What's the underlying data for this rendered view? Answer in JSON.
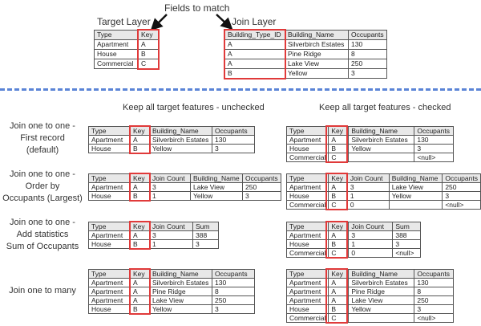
{
  "header": {
    "fields_to_match": "Fields to match",
    "target_layer": "Target Layer",
    "join_layer": "Join Layer"
  },
  "columns": {
    "unchecked": "Keep all target features - unchecked",
    "checked": "Keep all target features - checked"
  },
  "row_labels": [
    [
      "Join one to one -",
      "First record",
      "(default)"
    ],
    [
      "Join one to one -",
      "Order by",
      "Occupants (Largest)"
    ],
    [
      "Join one to one -",
      "Add statistics",
      "Sum of Occupants"
    ],
    [
      "Join one to many"
    ]
  ],
  "colors": {
    "key_highlight": "#e03a3a",
    "divider": "#5b84d6"
  },
  "tables": {
    "target": {
      "columns": [
        "Type",
        "Key"
      ],
      "rows": [
        [
          "Apartment",
          "A"
        ],
        [
          "House",
          "B"
        ],
        [
          "Commercial",
          "C"
        ]
      ]
    },
    "join": {
      "columns": [
        "Building_Type_ID",
        "Building_Name",
        "Occupants"
      ],
      "rows": [
        [
          "A",
          "Silverbirch Estates",
          "130"
        ],
        [
          "A",
          "Pine Ridge",
          "8"
        ],
        [
          "A",
          "Lake View",
          "250"
        ],
        [
          "B",
          "Yellow",
          "3"
        ]
      ]
    },
    "first_unchecked": {
      "columns": [
        "Type",
        "Key",
        "Building_Name",
        "Occupants"
      ],
      "rows": [
        [
          "Apartment",
          "A",
          "Silverbirch Estates",
          "130"
        ],
        [
          "House",
          "B",
          "Yellow",
          "3"
        ]
      ]
    },
    "first_checked": {
      "columns": [
        "Type",
        "Key",
        "Building_Name",
        "Occupants"
      ],
      "rows": [
        [
          "Apartment",
          "A",
          "Silverbirch Estates",
          "130"
        ],
        [
          "House",
          "B",
          "Yellow",
          "3"
        ],
        [
          "Commercial",
          "C",
          "",
          "<null>"
        ]
      ]
    },
    "order_unchecked": {
      "columns": [
        "Type",
        "Key",
        "Join Count",
        "Building_Name",
        "Occupants"
      ],
      "rows": [
        [
          "Apartment",
          "A",
          "3",
          "Lake View",
          "250"
        ],
        [
          "House",
          "B",
          "1",
          "Yellow",
          "3"
        ]
      ]
    },
    "order_checked": {
      "columns": [
        "Type",
        "Key",
        "Join Count",
        "Building_Name",
        "Occupants"
      ],
      "rows": [
        [
          "Apartment",
          "A",
          "3",
          "Lake View",
          "250"
        ],
        [
          "House",
          "B",
          "1",
          "Yellow",
          "3"
        ],
        [
          "Commercial",
          "C",
          "0",
          "",
          "<null>"
        ]
      ]
    },
    "stats_unchecked": {
      "columns": [
        "Type",
        "Key",
        "Join Count",
        "Sum"
      ],
      "rows": [
        [
          "Apartment",
          "A",
          "3",
          "388"
        ],
        [
          "House",
          "B",
          "1",
          "3"
        ]
      ]
    },
    "stats_checked": {
      "columns": [
        "Type",
        "Key",
        "Join Count",
        "Sum"
      ],
      "rows": [
        [
          "Apartment",
          "A",
          "3",
          "388"
        ],
        [
          "House",
          "B",
          "1",
          "3"
        ],
        [
          "Commercial",
          "C",
          "0",
          "<null>"
        ]
      ]
    },
    "many_unchecked": {
      "columns": [
        "Type",
        "Key",
        "Building_Name",
        "Occupants"
      ],
      "rows": [
        [
          "Apartment",
          "A",
          "Silverbirch Estates",
          "130"
        ],
        [
          "Apartment",
          "A",
          "Pine Ridge",
          "8"
        ],
        [
          "Apartment",
          "A",
          "Lake View",
          "250"
        ],
        [
          "House",
          "B",
          "Yellow",
          "3"
        ]
      ]
    },
    "many_checked": {
      "columns": [
        "Type",
        "Key",
        "Building_Name",
        "Occupants"
      ],
      "rows": [
        [
          "Apartment",
          "A",
          "Silverbirch Estates",
          "130"
        ],
        [
          "Apartment",
          "A",
          "Pine Ridge",
          "8"
        ],
        [
          "Apartment",
          "A",
          "Lake View",
          "250"
        ],
        [
          "House",
          "B",
          "Yellow",
          "3"
        ],
        [
          "Commercial",
          "C",
          "",
          "<null>"
        ]
      ]
    }
  }
}
